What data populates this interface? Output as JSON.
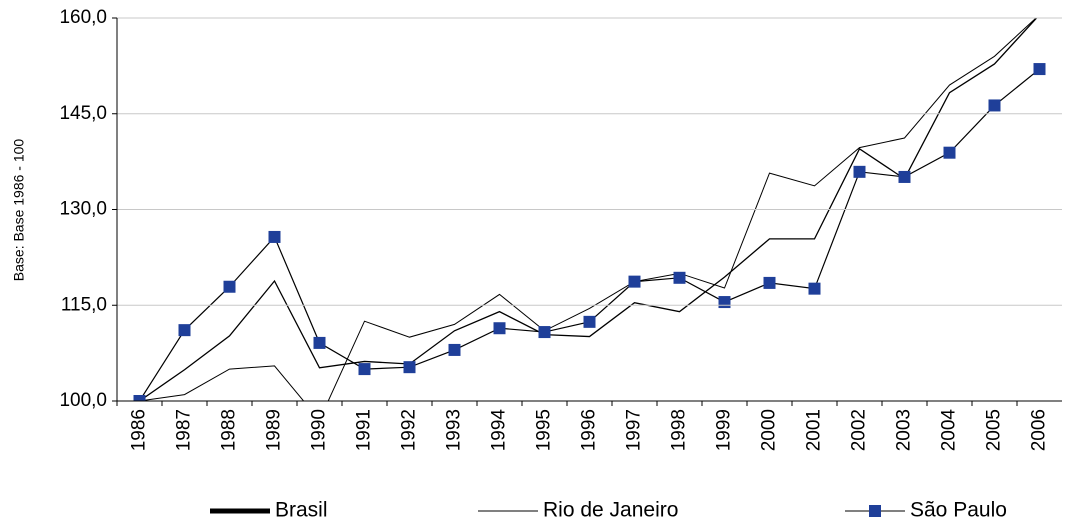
{
  "chart_data": {
    "type": "line",
    "y_label": "Base: Base 1986 - 100",
    "categories": [
      "1986",
      "1987",
      "1988",
      "1989",
      "1990",
      "1991",
      "1992",
      "1993",
      "1994",
      "1995",
      "1996",
      "1997",
      "1998",
      "1999",
      "2000",
      "2001",
      "2002",
      "2003",
      "2004",
      "2005",
      "2006"
    ],
    "series": [
      {
        "name": "Brasil",
        "color": "#000000",
        "line_width": 1.3,
        "legend_line_width": 5,
        "marker": false,
        "values": [
          100,
          104.9,
          110.2,
          118.8,
          105.2,
          106.2,
          105.8,
          111.0,
          114.0,
          110.4,
          110.1,
          115.4,
          114.0,
          119.4,
          125.4,
          125.4,
          139.5,
          134.8,
          148.3,
          152.8,
          160.5
        ]
      },
      {
        "name": "Rio de Janeiro",
        "color": "#000000",
        "line_width": 1,
        "legend_line_width": 1,
        "marker": false,
        "values": [
          100,
          101.0,
          105.0,
          105.5,
          97.0,
          112.5,
          110.0,
          112.0,
          116.7,
          111.0,
          114.5,
          118.7,
          120.0,
          117.7,
          135.7,
          133.7,
          139.7,
          141.2,
          149.5,
          154.0,
          160.5
        ]
      },
      {
        "name": "São Paulo",
        "color": "#1f3f99",
        "line_width": 1.2,
        "legend_line_width": 1,
        "marker": true,
        "values": [
          100,
          111.1,
          117.9,
          125.7,
          109.1,
          105.0,
          105.3,
          108.0,
          111.4,
          110.8,
          112.4,
          118.7,
          119.3,
          115.5,
          118.5,
          117.6,
          135.9,
          135.1,
          138.9,
          146.3,
          152.0
        ]
      }
    ],
    "ylim": [
      100,
      160
    ],
    "yticks": [
      {
        "value": 100,
        "label": "100,0"
      },
      {
        "value": 115,
        "label": "115,0"
      },
      {
        "value": 130,
        "label": "130,0"
      },
      {
        "value": 145,
        "label": "145,0"
      },
      {
        "value": 160,
        "label": "160,0"
      }
    ],
    "grid": true
  }
}
